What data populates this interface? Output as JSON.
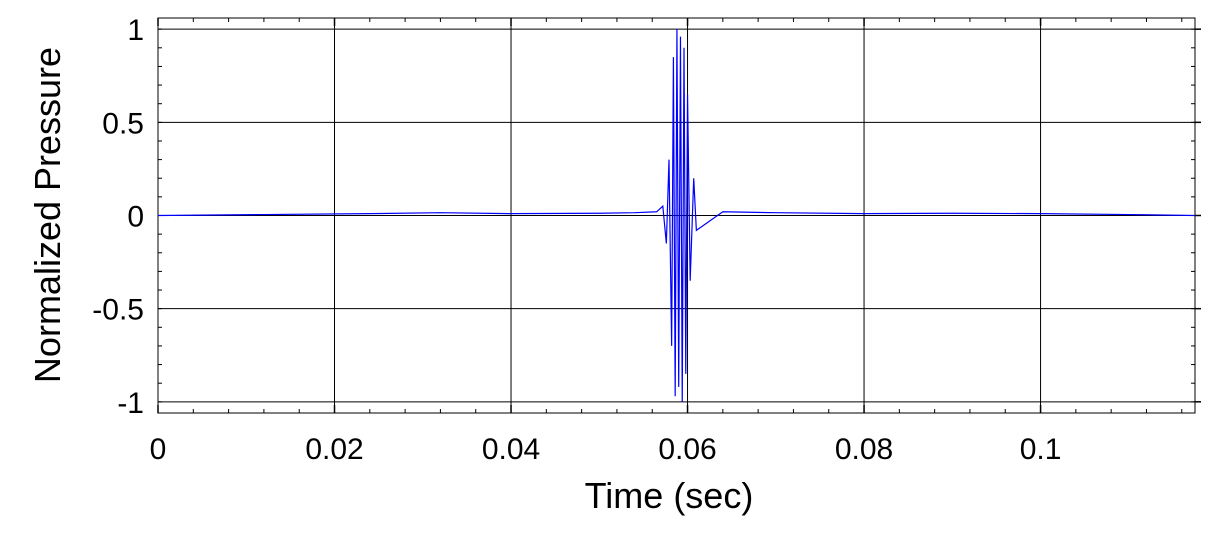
{
  "chart_data": {
    "type": "line",
    "title": "",
    "xlabel": "Time (sec)",
    "ylabel": "Normalized Pressure",
    "xlim": [
      0,
      0.1175
    ],
    "ylim": [
      -1.06,
      1.06
    ],
    "grid": true,
    "x_ticks": [
      0,
      0.02,
      0.04,
      0.06,
      0.08,
      0.1
    ],
    "x_tick_labels": [
      "0",
      "0.02",
      "0.04",
      "0.06",
      "0.08",
      "0.1"
    ],
    "y_ticks": [
      1,
      0.5,
      0,
      -0.5,
      -1
    ],
    "y_tick_labels": [
      "1",
      "0.5",
      "0",
      "-0.5",
      "-1"
    ],
    "series": [
      {
        "color": "#0000ff",
        "x": [
          0,
          0.012,
          0.024,
          0.032,
          0.04,
          0.05,
          0.054,
          0.0565,
          0.0572,
          0.0576,
          0.0579,
          0.0582,
          0.0584,
          0.0586,
          0.0588,
          0.059,
          0.0592,
          0.0594,
          0.0596,
          0.0598,
          0.06,
          0.0603,
          0.0607,
          0.061,
          0.064,
          0.07,
          0.08,
          0.09,
          0.1,
          0.11,
          0.1175
        ],
        "y": [
          0,
          0.005,
          0.01,
          0.015,
          0.01,
          0.012,
          0.015,
          0.02,
          0.05,
          -0.15,
          0.3,
          -0.7,
          0.85,
          -0.97,
          1.0,
          -0.92,
          0.96,
          -1.0,
          0.9,
          -0.85,
          0.65,
          -0.35,
          0.2,
          -0.08,
          0.02,
          0.015,
          0.01,
          0.012,
          0.01,
          0.005,
          0
        ]
      }
    ]
  }
}
